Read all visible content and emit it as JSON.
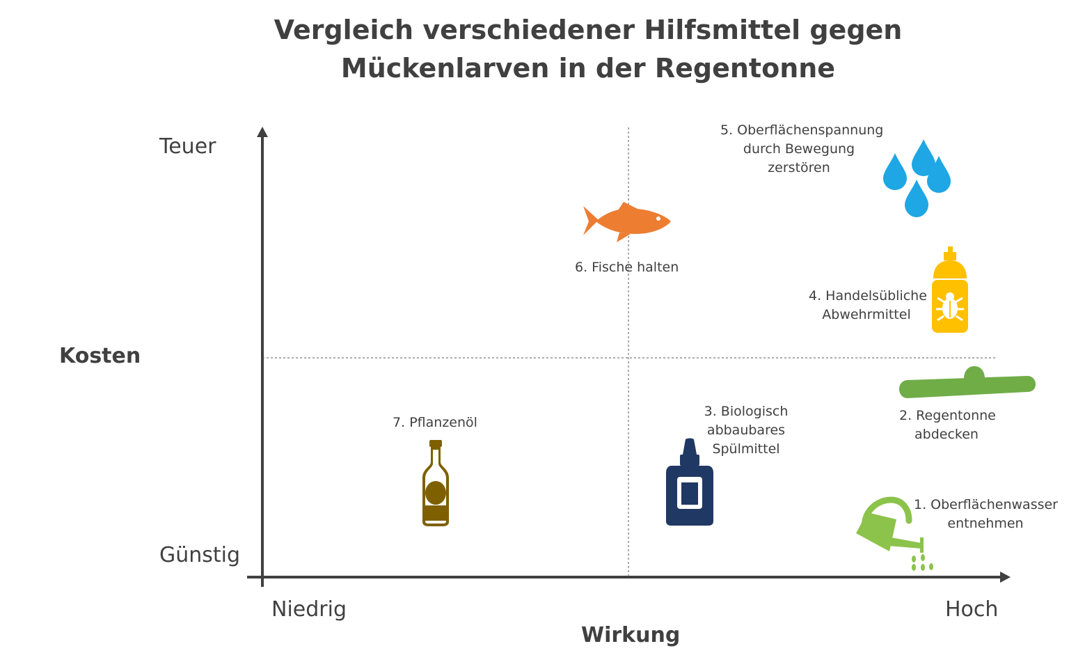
{
  "title": {
    "line1": "Vergleich verschiedener Hilfsmittel gegen",
    "line2": "Mückenlarven in der Regentonne"
  },
  "y_axis": {
    "title": "Kosten",
    "top_label": "Teuer",
    "bottom_label": "Günstig"
  },
  "x_axis": {
    "title": "Wirkung",
    "left_label": "Niedrig",
    "right_label": "Hoch"
  },
  "items": [
    {
      "label_lines": [
        "1. Oberflächenwasser",
        "entnehmen"
      ],
      "icon": "watering-can-icon",
      "color": "#8cc34a"
    },
    {
      "label_lines": [
        "2. Regentonne",
        "abdecken"
      ],
      "icon": "lid-icon",
      "color": "#70ad47"
    },
    {
      "label_lines": [
        "3. Biologisch",
        "abbaubares",
        "Spülmittel"
      ],
      "icon": "detergent-bottle-icon",
      "color": "#203864"
    },
    {
      "label_lines": [
        "4. Handelsübliche",
        "Abwehrmittel"
      ],
      "icon": "bug-spray-icon",
      "color": "#ffc000"
    },
    {
      "label_lines": [
        "5. Oberflächenspannung",
        "durch Bewegung",
        "zerstören"
      ],
      "icon": "water-drops-icon",
      "color": "#1ea7e4"
    },
    {
      "label_lines": [
        "6. Fische halten"
      ],
      "icon": "fish-icon",
      "color": "#ed7d31"
    },
    {
      "label_lines": [
        "7. Pflanzenöl"
      ],
      "icon": "oil-bottle-icon",
      "color": "#7f6000"
    }
  ]
}
